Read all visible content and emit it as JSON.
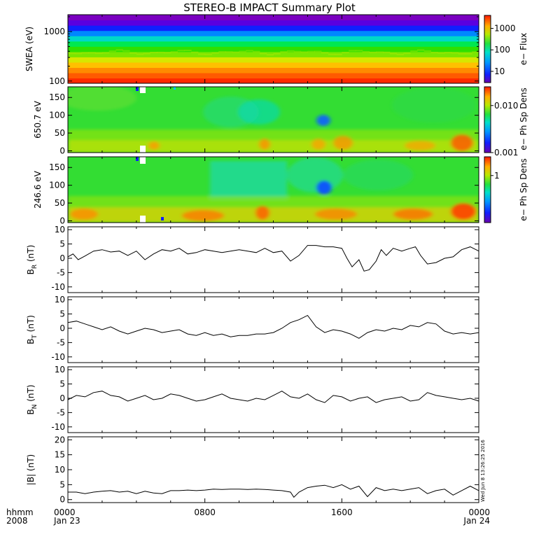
{
  "title": "STEREO-B IMPACT Summary Plot",
  "timestamp_stamp": "Wed Jun  8 13:26:25 2016",
  "x_axis": {
    "label_line1": "hhmm",
    "label_line2": "2008",
    "ticks": [
      {
        "t": 0,
        "line1": "0000",
        "line2": "Jan 23"
      },
      {
        "t": 8,
        "line1": "0800",
        "line2": ""
      },
      {
        "t": 16,
        "line1": "1600",
        "line2": ""
      },
      {
        "t": 24,
        "line1": "0000",
        "line2": "Jan 24"
      }
    ],
    "range_hours": [
      0,
      24
    ]
  },
  "chart_data": [
    {
      "type": "heatmap",
      "name": "swea",
      "ylabel": "SWEA (eV)",
      "yscale": "log",
      "ylim": [
        90,
        2200
      ],
      "yticks": [
        {
          "v": 100,
          "label": "100"
        },
        {
          "v": 1000,
          "label": "1000"
        }
      ],
      "colorbar": {
        "label": "e− Flux",
        "scale": "log",
        "range": [
          3,
          4000
        ],
        "ticks": [
          {
            "v": 10,
            "label": "10"
          },
          {
            "v": 100,
            "label": "100"
          },
          {
            "v": 1000,
            "label": "1000"
          }
        ]
      },
      "color_rows_low_to_high_energy": [
        "#ff2a00",
        "#ff5a00",
        "#ff8a00",
        "#ffc000",
        "#d8e600",
        "#7ae600",
        "#2ee000",
        "#00e850",
        "#00d8c8",
        "#0088ff",
        "#1020ff",
        "#5a00e0",
        "#7a00c0"
      ]
    },
    {
      "type": "heatmap",
      "name": "pad-650",
      "ylabel": "650.7 eV",
      "ylim": [
        -5,
        180
      ],
      "yticks": [
        {
          "v": 0,
          "label": "0"
        },
        {
          "v": 50,
          "label": "50"
        },
        {
          "v": 100,
          "label": "100"
        },
        {
          "v": 150,
          "label": "150"
        }
      ],
      "colorbar": {
        "label": "e− Ph Sp Dens",
        "scale": "log",
        "range": [
          0.001,
          0.025
        ],
        "ticks": [
          {
            "v": 0.001,
            "label": "0.001"
          },
          {
            "v": 0.01,
            "label": "0.010"
          }
        ]
      },
      "base_color": "#33dd33"
    },
    {
      "type": "heatmap",
      "name": "pad-246",
      "ylabel": "246.6 eV",
      "ylim": [
        -5,
        180
      ],
      "yticks": [
        {
          "v": 0,
          "label": "0"
        },
        {
          "v": 50,
          "label": "50"
        },
        {
          "v": 100,
          "label": "100"
        },
        {
          "v": 150,
          "label": "150"
        }
      ],
      "colorbar": {
        "label": "e− Ph Sp Dens",
        "scale": "log",
        "range": [
          0.1,
          2.5
        ],
        "ticks": [
          {
            "v": 1,
            "label": "1"
          }
        ]
      },
      "base_color": "#33dd33"
    },
    {
      "type": "line",
      "name": "br",
      "ylabel_main": "B",
      "ylabel_sub": "R",
      "ylabel_unit": " (nT)",
      "ylim": [
        -12,
        11
      ],
      "yticks": [
        -10,
        -5,
        0,
        5,
        10
      ],
      "x": [
        0,
        0.3,
        0.6,
        1,
        1.5,
        2,
        2.5,
        3,
        3.5,
        4,
        4.5,
        5,
        5.5,
        6,
        6.5,
        7,
        7.5,
        8,
        8.5,
        9,
        9.5,
        10,
        10.5,
        11,
        11.5,
        12,
        12.5,
        13,
        13.5,
        14,
        14.5,
        15,
        15.5,
        16,
        16.3,
        16.6,
        17,
        17.3,
        17.6,
        18,
        18.3,
        18.6,
        19,
        19.5,
        20,
        20.3,
        20.6,
        21,
        21.5,
        22,
        22.5,
        23,
        23.5,
        24
      ],
      "y": [
        0.5,
        1.5,
        -0.5,
        0.8,
        2.5,
        3,
        2.2,
        2.5,
        1,
        2.5,
        -0.5,
        1.5,
        3,
        2.5,
        3.5,
        1.5,
        2,
        3,
        2.5,
        2,
        2.5,
        3,
        2.5,
        2,
        3.5,
        2,
        2.5,
        -1,
        1,
        4.5,
        4.5,
        4,
        4,
        3.5,
        0,
        -3,
        -0.5,
        -4.5,
        -4,
        -1,
        3,
        1,
        3.5,
        2.5,
        3.5,
        4,
        1,
        -2,
        -1.5,
        0,
        0.5,
        3,
        4,
        2.5
      ]
    },
    {
      "type": "line",
      "name": "bt",
      "ylabel_main": "B",
      "ylabel_sub": "T",
      "ylabel_unit": " (nT)",
      "ylim": [
        -12,
        11
      ],
      "yticks": [
        -10,
        -5,
        0,
        5,
        10
      ],
      "x": [
        0,
        0.5,
        1,
        1.5,
        2,
        2.5,
        3,
        3.5,
        4,
        4.5,
        5,
        5.5,
        6,
        6.5,
        7,
        7.5,
        8,
        8.5,
        9,
        9.5,
        10,
        10.5,
        11,
        11.5,
        12,
        12.5,
        13,
        13.5,
        14,
        14.5,
        15,
        15.5,
        16,
        16.5,
        17,
        17.5,
        18,
        18.5,
        19,
        19.5,
        20,
        20.5,
        21,
        21.5,
        22,
        22.5,
        23,
        23.5,
        24
      ],
      "y": [
        2,
        2.5,
        1.5,
        0.5,
        -0.5,
        0.5,
        -1,
        -2,
        -1,
        0,
        -0.5,
        -1.5,
        -1,
        -0.5,
        -2,
        -2.5,
        -1.5,
        -2.5,
        -2,
        -3,
        -2.5,
        -2.5,
        -2,
        -2,
        -1.5,
        0,
        2,
        3,
        4.5,
        0.5,
        -1.5,
        -0.5,
        -1,
        -2,
        -3.5,
        -1.5,
        -0.5,
        -1,
        0,
        -0.5,
        1,
        0.5,
        2,
        1.5,
        -1,
        -2,
        -1.5,
        -2,
        -1.5
      ]
    },
    {
      "type": "line",
      "name": "bn",
      "ylabel_main": "B",
      "ylabel_sub": "N",
      "ylabel_unit": " (nT)",
      "ylim": [
        -12,
        11
      ],
      "yticks": [
        -10,
        -5,
        0,
        5,
        10
      ],
      "x": [
        0,
        0.5,
        1,
        1.5,
        2,
        2.5,
        3,
        3.5,
        4,
        4.5,
        5,
        5.5,
        6,
        6.5,
        7,
        7.5,
        8,
        8.5,
        9,
        9.5,
        10,
        10.5,
        11,
        11.5,
        12,
        12.5,
        13,
        13.5,
        14,
        14.5,
        15,
        15.5,
        16,
        16.5,
        17,
        17.5,
        18,
        18.5,
        19,
        19.5,
        20,
        20.5,
        21,
        21.5,
        22,
        22.5,
        23,
        23.5,
        24
      ],
      "y": [
        -0.5,
        1,
        0.5,
        2,
        2.5,
        1,
        0.5,
        -1,
        0,
        1,
        -0.5,
        0,
        1.5,
        1,
        0,
        -1,
        -0.5,
        0.5,
        1.5,
        0,
        -0.5,
        -1,
        0,
        -0.5,
        1,
        2.5,
        0.5,
        0,
        1.5,
        -0.5,
        -1.5,
        1,
        0.5,
        -1,
        0,
        0.5,
        -1.5,
        -0.5,
        0,
        0.5,
        -1,
        -0.5,
        2,
        1,
        0.5,
        0,
        -0.5,
        0,
        -1
      ]
    },
    {
      "type": "line",
      "name": "bmag",
      "ylabel_main": "|B| (nT)",
      "ylabel_sub": "",
      "ylabel_unit": "",
      "ylim": [
        -1,
        21
      ],
      "yticks": [
        0,
        5,
        10,
        15,
        20
      ],
      "x": [
        0,
        0.5,
        1,
        1.5,
        2,
        2.5,
        3,
        3.5,
        4,
        4.5,
        5,
        5.5,
        6,
        6.5,
        7,
        7.5,
        8,
        8.5,
        9,
        9.5,
        10,
        10.5,
        11,
        11.5,
        12,
        12.5,
        13,
        13.2,
        13.5,
        14,
        14.5,
        15,
        15.5,
        16,
        16.5,
        17,
        17.5,
        18,
        18.5,
        19,
        19.5,
        20,
        20.5,
        21,
        21.5,
        22,
        22.5,
        23,
        23.5,
        24
      ],
      "y": [
        2.5,
        2.5,
        2,
        2.5,
        2.8,
        3,
        2.5,
        2.8,
        2,
        2.8,
        2.2,
        2,
        3,
        3,
        3.2,
        3,
        3.2,
        3.5,
        3.4,
        3.5,
        3.5,
        3.4,
        3.5,
        3.4,
        3.2,
        3,
        2.5,
        0.8,
        2.5,
        4,
        4.5,
        4.8,
        4,
        5,
        3.5,
        4.5,
        1,
        4,
        3,
        3.5,
        3,
        3.5,
        4,
        2,
        3,
        3.5,
        1.5,
        3,
        4.5,
        3
      ]
    }
  ]
}
